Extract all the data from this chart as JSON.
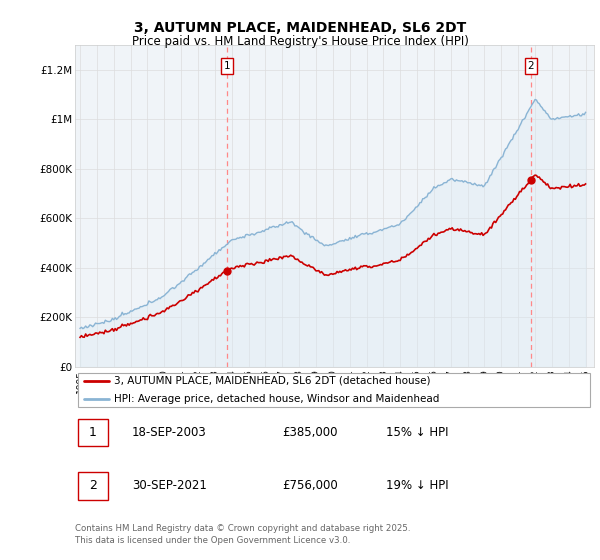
{
  "title": "3, AUTUMN PLACE, MAIDENHEAD, SL6 2DT",
  "subtitle": "Price paid vs. HM Land Registry's House Price Index (HPI)",
  "hpi_label": "HPI: Average price, detached house, Windsor and Maidenhead",
  "property_label": "3, AUTUMN PLACE, MAIDENHEAD, SL6 2DT (detached house)",
  "annotation1_date": "18-SEP-2003",
  "annotation1_price": "£385,000",
  "annotation1_hpi": "15% ↓ HPI",
  "annotation2_date": "30-SEP-2021",
  "annotation2_price": "£756,000",
  "annotation2_hpi": "19% ↓ HPI",
  "footer": "Contains HM Land Registry data © Crown copyright and database right 2025.\nThis data is licensed under the Open Government Licence v3.0.",
  "hpi_color": "#8ab4d4",
  "hpi_fill_color": "#daeaf5",
  "property_color": "#CC0000",
  "vline_color": "#FF8888",
  "background_color": "#FFFFFF",
  "grid_color": "#DDDDDD",
  "ylim": [
    0,
    1300000
  ],
  "yticks": [
    0,
    200000,
    400000,
    600000,
    800000,
    1000000,
    1200000
  ],
  "ytick_labels": [
    "£0",
    "£200K",
    "£400K",
    "£600K",
    "£800K",
    "£1M",
    "£1.2M"
  ],
  "sale1_t": 2003.71,
  "sale1_v": 385000,
  "sale2_t": 2021.75,
  "sale2_v": 756000
}
